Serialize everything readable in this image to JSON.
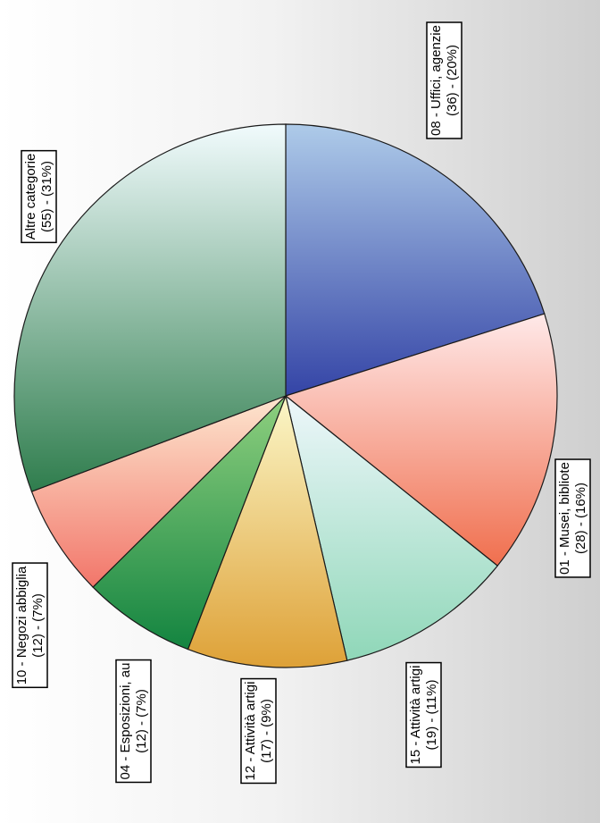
{
  "chart_data": {
    "type": "pie",
    "title": "",
    "start_angle_deg": 0,
    "direction": "clockwise",
    "slices": [
      {
        "category": "08 - Uffici, agenzie",
        "value": 36,
        "percent": "20%",
        "line1": "08 - Uffici, agenzie",
        "line2": "(36) - (20%)",
        "color_top": "#aecbe9",
        "color_bottom": "#3444a6"
      },
      {
        "category": "01 - Musei, bibliote",
        "value": 28,
        "percent": "16%",
        "line1": "01 - Musei, bibliote",
        "line2": "(28) - (16%)",
        "color_top": "#ffe9e9",
        "color_bottom": "#f06f4e"
      },
      {
        "category": "15 - Attività artigi",
        "value": 19,
        "percent": "11%",
        "line1": "15 - Attività artigi",
        "line2": "(19) - (11%)",
        "color_top": "#eef7fb",
        "color_bottom": "#8fd7b8"
      },
      {
        "category": "12 - Attività artigi",
        "value": 17,
        "percent": "9%",
        "line1": "12 - Attività artigi",
        "line2": "(17) - (9%)",
        "color_top": "#fbf7c8",
        "color_bottom": "#dea137"
      },
      {
        "category": "04 - Esposizioni, au",
        "value": 12,
        "percent": "7%",
        "line1": "04 - Esposizioni, au",
        "line2": "(12) - (7%)",
        "color_top": "#8fd07f",
        "color_bottom": "#138440"
      },
      {
        "category": "10 - Negozi abbiglia",
        "value": 12,
        "percent": "7%",
        "line1": "10 - Negozi abbiglia",
        "line2": "(12) - (7%)",
        "color_top": "#fde6cf",
        "color_bottom": "#f2766a"
      },
      {
        "category": "Altre categorie",
        "value": 55,
        "percent": "31%",
        "line1": "Altre categorie",
        "line2": "(55) - (31%)",
        "color_top": "#f1fbfd",
        "color_bottom": "#2f7d4d"
      }
    ]
  }
}
